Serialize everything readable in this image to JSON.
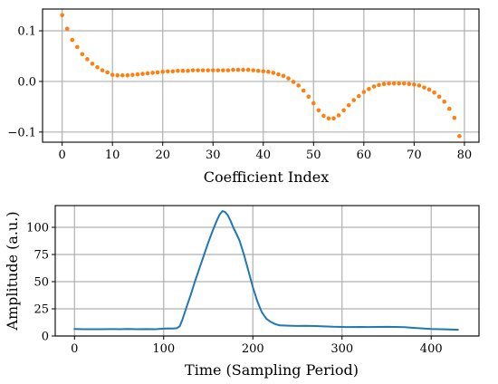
{
  "chart_data": [
    {
      "type": "scatter",
      "xlabel": "Coefficient Index",
      "ylabel": "",
      "xlim": [
        -3.9,
        82.9
      ],
      "ylim": [
        -0.12,
        0.143
      ],
      "xticks": [
        0,
        10,
        20,
        30,
        40,
        50,
        60,
        70,
        80
      ],
      "xtick_labels": [
        "0",
        "10",
        "20",
        "30",
        "40",
        "50",
        "60",
        "70",
        "80"
      ],
      "yticks": [
        -0.1,
        0.0,
        0.1
      ],
      "ytick_labels": [
        "−0.1",
        "0.0",
        "0.1"
      ],
      "grid": true,
      "series_color": "#ff7f0e",
      "series": [
        {
          "x": [
            0,
            1,
            2,
            3,
            4,
            5,
            6,
            7,
            8,
            9,
            10,
            11,
            12,
            13,
            14,
            15,
            16,
            17,
            18,
            19,
            20,
            21,
            22,
            23,
            24,
            25,
            26,
            27,
            28,
            29,
            30,
            31,
            32,
            33,
            34,
            35,
            36,
            37,
            38,
            39,
            40,
            41,
            42,
            43,
            44,
            45,
            46,
            47,
            48,
            49,
            50,
            51,
            52,
            53,
            54,
            55,
            56,
            57,
            58,
            59,
            60,
            61,
            62,
            63,
            64,
            65,
            66,
            67,
            68,
            69,
            70,
            71,
            72,
            73,
            74,
            75,
            76,
            77,
            78,
            79
          ],
          "values": [
            0.131,
            0.104,
            0.082,
            0.068,
            0.054,
            0.044,
            0.035,
            0.028,
            0.022,
            0.018,
            0.013,
            0.012,
            0.012,
            0.012,
            0.013,
            0.014,
            0.015,
            0.016,
            0.017,
            0.018,
            0.019,
            0.02,
            0.02,
            0.021,
            0.021,
            0.021,
            0.022,
            0.022,
            0.022,
            0.022,
            0.022,
            0.022,
            0.022,
            0.022,
            0.023,
            0.023,
            0.023,
            0.023,
            0.022,
            0.021,
            0.02,
            0.019,
            0.017,
            0.014,
            0.011,
            0.006,
            -0.001,
            -0.008,
            -0.018,
            -0.03,
            -0.043,
            -0.057,
            -0.068,
            -0.073,
            -0.073,
            -0.067,
            -0.057,
            -0.047,
            -0.037,
            -0.029,
            -0.021,
            -0.015,
            -0.01,
            -0.007,
            -0.005,
            -0.004,
            -0.004,
            -0.004,
            -0.004,
            -0.005,
            -0.006,
            -0.008,
            -0.012,
            -0.016,
            -0.022,
            -0.03,
            -0.04,
            -0.054,
            -0.072,
            -0.108
          ]
        }
      ]
    },
    {
      "type": "line",
      "xlabel": "Time (Sampling Period)",
      "ylabel": "Amplitude (a.u.)",
      "xlim": [
        -21.6,
        453.6
      ],
      "ylim": [
        0,
        120
      ],
      "xticks": [
        0,
        100,
        200,
        300,
        400
      ],
      "xtick_labels": [
        "0",
        "100",
        "200",
        "300",
        "400"
      ],
      "yticks": [
        0,
        25,
        50,
        75,
        100
      ],
      "ytick_labels": [
        "0",
        "25",
        "50",
        "75",
        "100"
      ],
      "grid": true,
      "series_color": "#1f77b4",
      "series": [
        {
          "x": [
            0,
            10,
            20,
            30,
            40,
            50,
            60,
            70,
            80,
            90,
            100,
            105,
            110,
            115,
            118,
            121,
            125,
            130,
            135,
            140,
            145,
            150,
            155,
            160,
            163,
            166,
            169,
            172,
            175,
            178,
            181,
            185,
            190,
            195,
            200,
            205,
            210,
            215,
            220,
            225,
            230,
            240,
            250,
            260,
            270,
            280,
            290,
            300,
            310,
            320,
            330,
            340,
            350,
            360,
            370,
            380,
            390,
            400,
            410,
            420,
            430
          ],
          "values": [
            6.5,
            6.3,
            6.2,
            6.3,
            6.4,
            6.3,
            6.5,
            6.3,
            6.4,
            6.2,
            6.8,
            7.0,
            6.9,
            7.2,
            9,
            15,
            25,
            37,
            50,
            62,
            74,
            86,
            97,
            107,
            112,
            115,
            114,
            111,
            106,
            100,
            95,
            88,
            75,
            60,
            45,
            32,
            22,
            16,
            13,
            11,
            9.8,
            9.5,
            9.3,
            9.4,
            9.2,
            8.9,
            8.5,
            8.3,
            8.2,
            8.3,
            8.2,
            8.3,
            8.4,
            8.3,
            8.1,
            7.5,
            7,
            6.5,
            6.2,
            6,
            5.7
          ]
        }
      ]
    }
  ]
}
